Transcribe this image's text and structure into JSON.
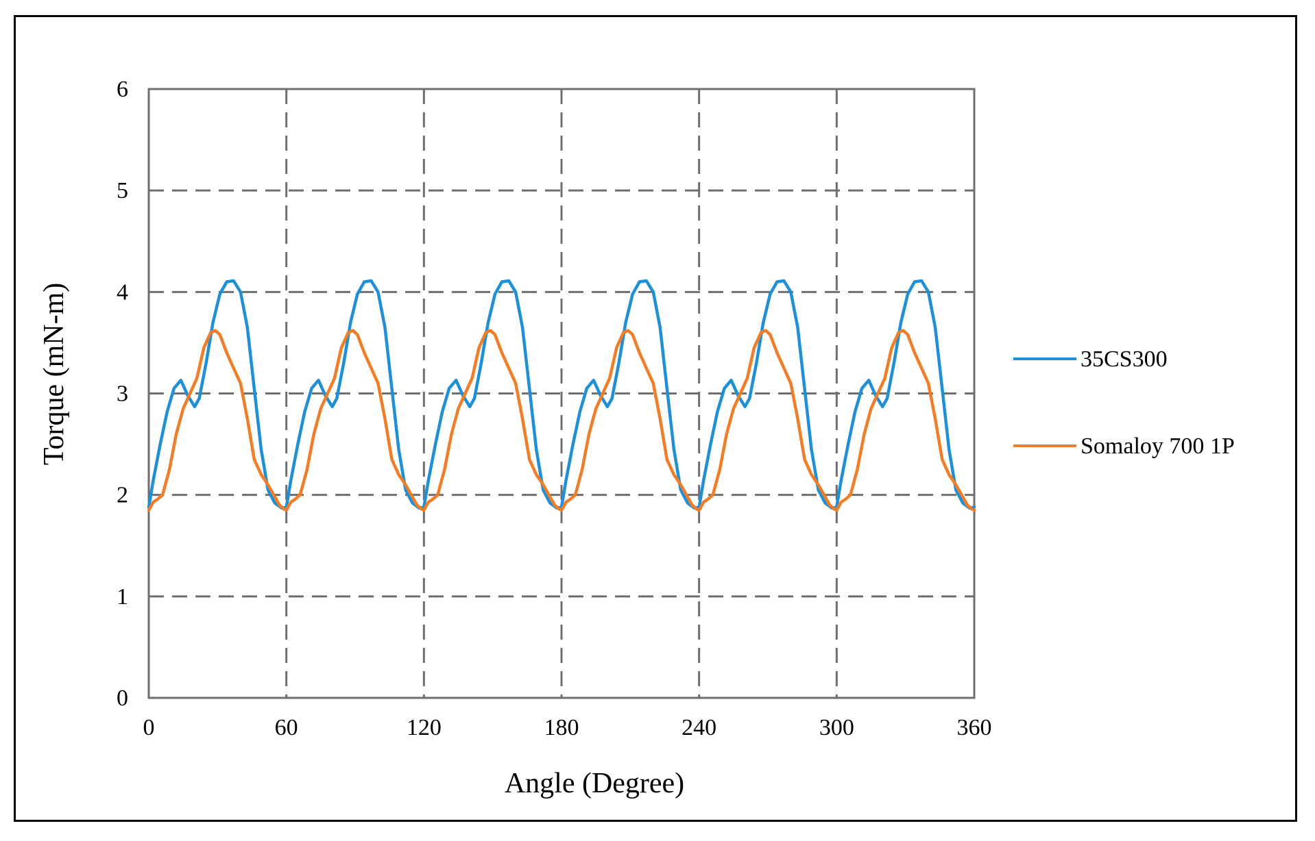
{
  "chart_data": {
    "type": "line",
    "title": "",
    "xlabel": "Angle (Degree)",
    "ylabel": "Torque (mN-m)",
    "xlim": [
      0,
      360
    ],
    "ylim": [
      0,
      6
    ],
    "xticks": [
      0,
      60,
      120,
      180,
      240,
      300,
      360
    ],
    "yticks": [
      0,
      1,
      2,
      3,
      4,
      5,
      6
    ],
    "grid": true,
    "legend_position": "right",
    "period_degrees": 60,
    "series": [
      {
        "name": "35CS300",
        "color": "#1f8fd6",
        "x": [
          0,
          2,
          5,
          8,
          11,
          14,
          17,
          20,
          22,
          25,
          28,
          31,
          34,
          37,
          40,
          43,
          46,
          49,
          52,
          55,
          58,
          60,
          62,
          65,
          68,
          71,
          74,
          77,
          80,
          82,
          85,
          88,
          91,
          94,
          97,
          100,
          103,
          106,
          109,
          112,
          115,
          118,
          120,
          122,
          125,
          128,
          131,
          134,
          137,
          140,
          142,
          145,
          148,
          151,
          154,
          157,
          160,
          163,
          166,
          169,
          172,
          175,
          178,
          180,
          182,
          185,
          188,
          191,
          194,
          197,
          200,
          202,
          205,
          208,
          211,
          214,
          217,
          220,
          223,
          226,
          229,
          232,
          235,
          238,
          240,
          242,
          245,
          248,
          251,
          254,
          257,
          260,
          262,
          265,
          268,
          271,
          274,
          277,
          280,
          283,
          286,
          289,
          292,
          295,
          298,
          300,
          302,
          305,
          308,
          311,
          314,
          317,
          320,
          322,
          325,
          328,
          331,
          334,
          337,
          340,
          343,
          346,
          349,
          352,
          355,
          358,
          360
        ],
        "y": [
          1.88,
          2.15,
          2.5,
          2.82,
          3.05,
          3.13,
          2.98,
          2.87,
          2.95,
          3.3,
          3.7,
          3.98,
          4.1,
          4.11,
          4.0,
          3.65,
          3.05,
          2.45,
          2.05,
          1.92,
          1.87,
          1.88,
          2.15,
          2.5,
          2.82,
          3.05,
          3.13,
          2.98,
          2.87,
          2.95,
          3.3,
          3.7,
          3.98,
          4.1,
          4.11,
          4.0,
          3.65,
          3.05,
          2.45,
          2.05,
          1.92,
          1.87,
          1.88,
          2.15,
          2.5,
          2.82,
          3.05,
          3.13,
          2.98,
          2.87,
          2.95,
          3.3,
          3.7,
          3.98,
          4.1,
          4.11,
          4.0,
          3.65,
          3.05,
          2.45,
          2.05,
          1.92,
          1.87,
          1.88,
          2.15,
          2.5,
          2.82,
          3.05,
          3.13,
          2.98,
          2.87,
          2.95,
          3.3,
          3.7,
          3.98,
          4.1,
          4.11,
          4.0,
          3.65,
          3.05,
          2.45,
          2.05,
          1.92,
          1.87,
          1.88,
          2.15,
          2.5,
          2.82,
          3.05,
          3.13,
          2.98,
          2.87,
          2.95,
          3.3,
          3.7,
          3.98,
          4.1,
          4.11,
          4.0,
          3.65,
          3.05,
          2.45,
          2.05,
          1.92,
          1.87,
          1.88,
          2.15,
          2.5,
          2.82,
          3.05,
          3.13,
          2.98,
          2.87,
          2.95,
          3.3,
          3.7,
          3.98,
          4.1,
          4.11,
          4.0,
          3.65,
          3.05,
          2.45,
          2.05,
          1.92,
          1.87,
          1.88
        ]
      },
      {
        "name": "Somaloy 700 1P",
        "color": "#f07d28",
        "x": [
          0,
          2,
          4,
          6,
          9,
          12,
          15,
          18,
          21,
          24,
          27,
          29,
          31,
          34,
          37,
          40,
          43,
          46,
          49,
          52,
          55,
          57,
          59,
          60,
          62,
          64,
          66,
          69,
          72,
          75,
          78,
          81,
          84,
          87,
          89,
          91,
          94,
          97,
          100,
          103,
          106,
          109,
          112,
          115,
          117,
          119,
          120,
          122,
          124,
          126,
          129,
          132,
          135,
          138,
          141,
          144,
          147,
          149,
          151,
          154,
          157,
          160,
          163,
          166,
          169,
          172,
          175,
          177,
          179,
          180,
          182,
          184,
          186,
          189,
          192,
          195,
          198,
          201,
          204,
          207,
          209,
          211,
          214,
          217,
          220,
          223,
          226,
          229,
          232,
          235,
          237,
          239,
          240,
          242,
          244,
          246,
          249,
          252,
          255,
          258,
          261,
          264,
          267,
          269,
          271,
          274,
          277,
          280,
          283,
          286,
          289,
          292,
          295,
          297,
          299,
          300,
          302,
          304,
          306,
          309,
          312,
          315,
          318,
          321,
          324,
          327,
          329,
          331,
          334,
          337,
          340,
          343,
          346,
          349,
          352,
          355,
          357,
          359,
          360
        ],
        "y": [
          1.85,
          1.93,
          1.96,
          2.0,
          2.25,
          2.6,
          2.85,
          3.0,
          3.15,
          3.45,
          3.6,
          3.62,
          3.58,
          3.4,
          3.25,
          3.1,
          2.75,
          2.35,
          2.2,
          2.1,
          1.98,
          1.9,
          1.86,
          1.85,
          1.93,
          1.96,
          2.0,
          2.25,
          2.6,
          2.85,
          3.0,
          3.15,
          3.45,
          3.6,
          3.62,
          3.58,
          3.4,
          3.25,
          3.1,
          2.75,
          2.35,
          2.2,
          2.1,
          1.98,
          1.9,
          1.86,
          1.85,
          1.93,
          1.96,
          2.0,
          2.25,
          2.6,
          2.85,
          3.0,
          3.15,
          3.45,
          3.6,
          3.62,
          3.58,
          3.4,
          3.25,
          3.1,
          2.75,
          2.35,
          2.2,
          2.1,
          1.98,
          1.9,
          1.86,
          1.85,
          1.93,
          1.96,
          2.0,
          2.25,
          2.6,
          2.85,
          3.0,
          3.15,
          3.45,
          3.6,
          3.62,
          3.58,
          3.4,
          3.25,
          3.1,
          2.75,
          2.35,
          2.2,
          2.1,
          1.98,
          1.9,
          1.86,
          1.85,
          1.93,
          1.96,
          2.0,
          2.25,
          2.6,
          2.85,
          3.0,
          3.15,
          3.45,
          3.6,
          3.62,
          3.58,
          3.4,
          3.25,
          3.1,
          2.75,
          2.35,
          2.2,
          2.1,
          1.98,
          1.9,
          1.86,
          1.85,
          1.93,
          1.96,
          2.0,
          2.25,
          2.6,
          2.85,
          3.0,
          3.15,
          3.45,
          3.6,
          3.62,
          3.58,
          3.4,
          3.25,
          3.1,
          2.75,
          2.35,
          2.2,
          2.1,
          1.98,
          1.9,
          1.86,
          1.85
        ]
      }
    ]
  }
}
